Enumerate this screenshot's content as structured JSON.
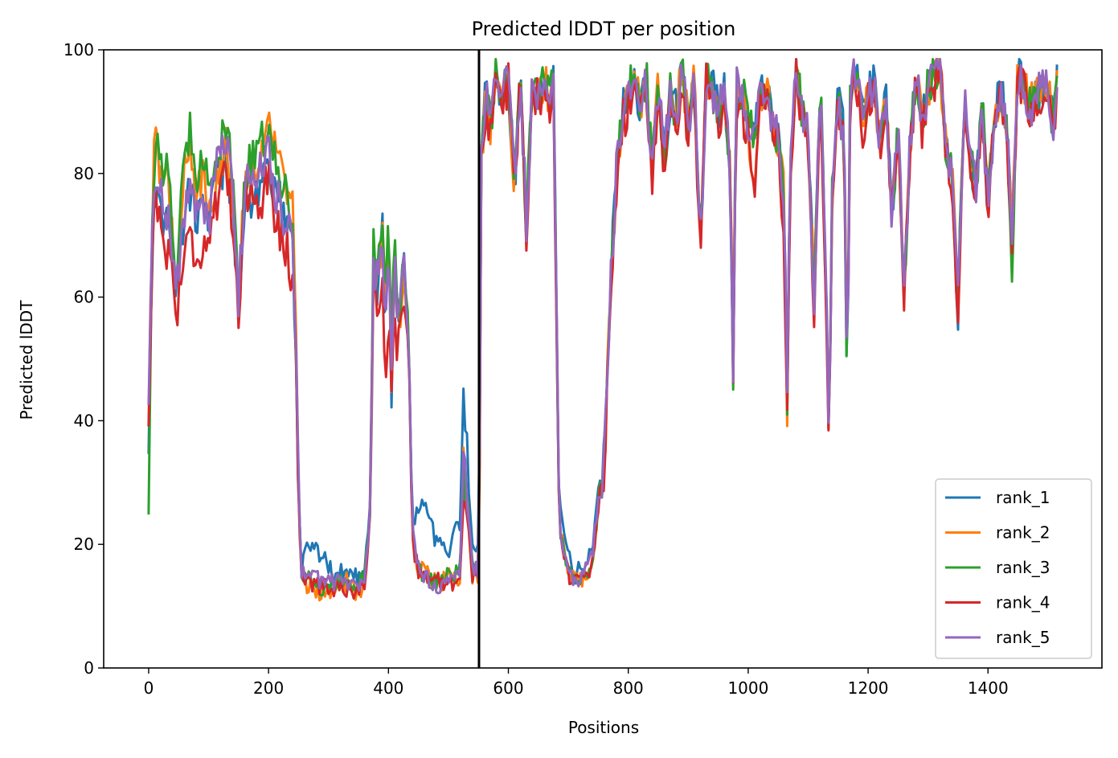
{
  "chart_data": {
    "type": "line",
    "title": "Predicted lDDT per position",
    "xlabel": "Positions",
    "ylabel": "Predicted lDDT",
    "xlim": [
      -75,
      1590
    ],
    "ylim": [
      0,
      100
    ],
    "xticks": [
      0,
      200,
      400,
      600,
      800,
      1000,
      1200,
      1400
    ],
    "yticks": [
      0,
      20,
      40,
      60,
      80,
      100
    ],
    "grid": false,
    "legend_position": "lower-right",
    "vline_x": 551,
    "x_max": 1516,
    "anchor_x": [
      0,
      5,
      10,
      20,
      30,
      40,
      45,
      50,
      60,
      70,
      80,
      90,
      100,
      110,
      120,
      130,
      140,
      150,
      160,
      170,
      180,
      190,
      200,
      210,
      220,
      230,
      240,
      245,
      250,
      255,
      260,
      270,
      290,
      310,
      330,
      350,
      360,
      370,
      375,
      380,
      390,
      395,
      400,
      405,
      410,
      415,
      420,
      425,
      430,
      435,
      440,
      450,
      460,
      470,
      480,
      490,
      500,
      510,
      520,
      525,
      530,
      540,
      550,
      551,
      555,
      560,
      565,
      570,
      580,
      590,
      600,
      610,
      620,
      630,
      640,
      650,
      660,
      670,
      675,
      680,
      685,
      690,
      700,
      710,
      720,
      730,
      740,
      750,
      760,
      770,
      780,
      790,
      800,
      810,
      820,
      830,
      840,
      850,
      860,
      870,
      880,
      890,
      900,
      910,
      920,
      930,
      940,
      950,
      960,
      970,
      975,
      980,
      990,
      1000,
      1010,
      1020,
      1030,
      1040,
      1050,
      1060,
      1065,
      1070,
      1080,
      1090,
      1100,
      1110,
      1120,
      1130,
      1135,
      1140,
      1150,
      1160,
      1165,
      1170,
      1180,
      1190,
      1200,
      1210,
      1220,
      1230,
      1240,
      1250,
      1260,
      1270,
      1280,
      1290,
      1300,
      1310,
      1320,
      1330,
      1340,
      1350,
      1360,
      1370,
      1380,
      1390,
      1400,
      1410,
      1420,
      1430,
      1440,
      1450,
      1460,
      1470,
      1480,
      1490,
      1500,
      1510,
      1516
    ],
    "series": [
      {
        "name": "rank_1",
        "color": "#1f77b4",
        "values": [
          36,
          65,
          78,
          74,
          72,
          69,
          60,
          66,
          74,
          77,
          73,
          76,
          71,
          78,
          80,
          82,
          74,
          59,
          75,
          76,
          77,
          78,
          79,
          77,
          75,
          72,
          68,
          54,
          28,
          16,
          20,
          20,
          18,
          15,
          16,
          15,
          17,
          27,
          67,
          60,
          70,
          55,
          68,
          45,
          64,
          60,
          58,
          66,
          62,
          48,
          23,
          26,
          27,
          24,
          20,
          21,
          19,
          22,
          23,
          45,
          31,
          20,
          19,
          17,
          85,
          92,
          93,
          89,
          97,
          92,
          95,
          78,
          96,
          72,
          94,
          93,
          95,
          92,
          96,
          60,
          26,
          23,
          18,
          15,
          16,
          18,
          20,
          28,
          34,
          62,
          80,
          90,
          93,
          96,
          90,
          96,
          80,
          95,
          82,
          92,
          90,
          97,
          88,
          95,
          67,
          96,
          94,
          90,
          93,
          80,
          47,
          94,
          93,
          89,
          86,
          92,
          94,
          88,
          86,
          75,
          41,
          82,
          97,
          90,
          87,
          59,
          96,
          60,
          36,
          76,
          92,
          86,
          45,
          92,
          97,
          88,
          93,
          95,
          84,
          92,
          73,
          88,
          60,
          85,
          97,
          88,
          94,
          96,
          98,
          84,
          79,
          58,
          93,
          83,
          78,
          92,
          74,
          89,
          93,
          90,
          69,
          97,
          94,
          91,
          92,
          94,
          93,
          88,
          97,
          90,
          82,
          88,
          80
        ],
        "extra_x": [
          520,
          525,
          530,
          535
        ],
        "extra_y": [
          30,
          45,
          38,
          25
        ]
      },
      {
        "name": "rank_2",
        "color": "#ff7f0e",
        "values": [
          40,
          68,
          86,
          80,
          80,
          70,
          62,
          68,
          80,
          83,
          76,
          80,
          74,
          79,
          82,
          86,
          76,
          60,
          80,
          82,
          80,
          84,
          88,
          84,
          82,
          78,
          75,
          57,
          27,
          15,
          14,
          13,
          12,
          13,
          14,
          12,
          14,
          26,
          65,
          61,
          70,
          58,
          68,
          48,
          65,
          58,
          58,
          64,
          60,
          47,
          20,
          16,
          16,
          14,
          14,
          14,
          15,
          14,
          15,
          34,
          28,
          15,
          15,
          15,
          82,
          90,
          91,
          88,
          97,
          91,
          96,
          78,
          96,
          70,
          94,
          93,
          95,
          92,
          94,
          60,
          22,
          21,
          16,
          14,
          14,
          15,
          17,
          26,
          32,
          60,
          79,
          89,
          92,
          96,
          90,
          96,
          80,
          95,
          82,
          93,
          90,
          97,
          87,
          95,
          68,
          96,
          93,
          91,
          93,
          81,
          48,
          94,
          92,
          88,
          77,
          92,
          94,
          88,
          85,
          76,
          42,
          80,
          96,
          89,
          86,
          60,
          96,
          60,
          37,
          76,
          92,
          85,
          45,
          92,
          97,
          88,
          93,
          95,
          84,
          92,
          74,
          88,
          61,
          85,
          97,
          88,
          94,
          96,
          98,
          84,
          80,
          60,
          93,
          83,
          78,
          92,
          75,
          89,
          93,
          90,
          70,
          97,
          94,
          91,
          92,
          94,
          93,
          88,
          97,
          91,
          82,
          89,
          80
        ]
      },
      {
        "name": "rank_3",
        "color": "#2ca02c",
        "values": [
          25,
          70,
          84,
          82,
          80,
          72,
          62,
          70,
          82,
          88,
          80,
          84,
          78,
          82,
          84,
          88,
          78,
          62,
          78,
          82,
          82,
          86,
          86,
          82,
          78,
          78,
          70,
          56,
          28,
          16,
          15,
          14,
          13,
          14,
          14,
          13,
          15,
          27,
          68,
          62,
          71,
          60,
          70,
          50,
          69,
          60,
          58,
          67,
          62,
          48,
          22,
          16,
          15,
          14,
          14,
          14,
          15,
          15,
          16,
          30,
          26,
          17,
          17,
          16,
          83,
          91,
          92,
          88,
          97,
          92,
          96,
          78,
          96,
          71,
          94,
          93,
          96,
          92,
          95,
          61,
          23,
          21,
          16,
          14,
          14,
          15,
          16,
          27,
          33,
          62,
          80,
          90,
          93,
          96,
          90,
          96,
          80,
          95,
          82,
          93,
          90,
          97,
          88,
          95,
          69,
          96,
          94,
          90,
          93,
          81,
          48,
          94,
          93,
          89,
          86,
          92,
          94,
          88,
          86,
          76,
          42,
          81,
          97,
          90,
          87,
          60,
          96,
          61,
          37,
          76,
          92,
          86,
          43,
          92,
          97,
          88,
          93,
          95,
          84,
          92,
          73,
          88,
          61,
          85,
          97,
          88,
          94,
          96,
          98,
          84,
          80,
          59,
          93,
          83,
          78,
          92,
          75,
          89,
          94,
          90,
          63,
          97,
          94,
          91,
          92,
          94,
          93,
          88,
          97,
          90,
          82,
          89,
          80
        ]
      },
      {
        "name": "rank_4",
        "color": "#d62728",
        "values": [
          39,
          62,
          80,
          70,
          68,
          64,
          57,
          60,
          68,
          70,
          66,
          68,
          70,
          74,
          76,
          80,
          72,
          58,
          76,
          78,
          76,
          76,
          80,
          74,
          70,
          68,
          62,
          55,
          28,
          16,
          14,
          14,
          13,
          13,
          13,
          12,
          14,
          25,
          63,
          58,
          64,
          44,
          58,
          42,
          60,
          50,
          56,
          62,
          58,
          47,
          20,
          16,
          15,
          14,
          14,
          14,
          14,
          14,
          14,
          28,
          26,
          15,
          15,
          15,
          80,
          89,
          90,
          87,
          96,
          90,
          95,
          77,
          95,
          70,
          93,
          92,
          94,
          91,
          95,
          60,
          22,
          20,
          15,
          14,
          14,
          15,
          16,
          26,
          32,
          57,
          78,
          88,
          91,
          95,
          88,
          95,
          78,
          94,
          80,
          91,
          88,
          96,
          86,
          94,
          67,
          95,
          92,
          88,
          92,
          78,
          48,
          92,
          90,
          86,
          74,
          90,
          92,
          86,
          84,
          66,
          41,
          78,
          95,
          88,
          84,
          58,
          95,
          58,
          36,
          74,
          90,
          84,
          44,
          91,
          96,
          86,
          92,
          94,
          82,
          90,
          72,
          86,
          60,
          84,
          96,
          87,
          93,
          95,
          97,
          83,
          78,
          58,
          92,
          82,
          77,
          91,
          73,
          88,
          92,
          89,
          68,
          96,
          93,
          90,
          91,
          93,
          92,
          87,
          96,
          89,
          81,
          87,
          80
        ]
      },
      {
        "name": "rank_5",
        "color": "#9467bd",
        "values": [
          42,
          66,
          81,
          78,
          74,
          68,
          61,
          64,
          74,
          79,
          72,
          76,
          72,
          80,
          82,
          86,
          76,
          60,
          77,
          80,
          80,
          82,
          84,
          78,
          74,
          72,
          68,
          55,
          28,
          16,
          16,
          15,
          14,
          14,
          14,
          13,
          14,
          26,
          67,
          62,
          70,
          55,
          69,
          46,
          66,
          58,
          58,
          65,
          61,
          48,
          22,
          16,
          15,
          14,
          13,
          14,
          14,
          14,
          15,
          36,
          28,
          16,
          16,
          16,
          84,
          92,
          93,
          89,
          97,
          92,
          96,
          78,
          96,
          72,
          94,
          93,
          95,
          92,
          96,
          61,
          23,
          21,
          16,
          14,
          15,
          16,
          18,
          27,
          33,
          61,
          80,
          90,
          93,
          96,
          90,
          96,
          80,
          95,
          82,
          93,
          90,
          97,
          88,
          95,
          68,
          96,
          94,
          90,
          93,
          81,
          47,
          94,
          93,
          89,
          86,
          92,
          94,
          88,
          86,
          75,
          42,
          82,
          97,
          90,
          87,
          59,
          96,
          60,
          37,
          76,
          92,
          86,
          45,
          92,
          97,
          88,
          93,
          95,
          84,
          92,
          73,
          88,
          61,
          85,
          97,
          88,
          94,
          96,
          98,
          84,
          80,
          59,
          93,
          83,
          78,
          92,
          74,
          89,
          93,
          90,
          70,
          97,
          94,
          91,
          92,
          94,
          93,
          88,
          97,
          90,
          82,
          88,
          80
        ]
      }
    ]
  }
}
